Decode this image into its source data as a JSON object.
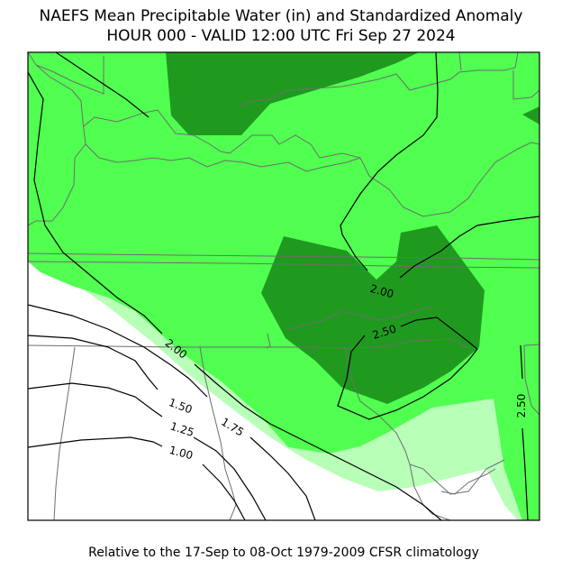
{
  "title": {
    "line1": "NAEFS Mean Precipitable Water (in) and Standardized Anomaly",
    "line2": "HOUR 000 - VALID 12:00 UTC Fri Sep 27 2024"
  },
  "footer": "Relative to the 17-Sep to 08-Oct 1979-2009 CFSR climatology",
  "colors": {
    "background": "#ffffff",
    "anomaly_low": "#b8ffb8",
    "anomaly_mid": "#50ff50",
    "anomaly_high": "#1f9a1f",
    "contour": "#000000",
    "border": "#6e6e6e"
  },
  "contour_labels": [
    "2.00",
    "2.00",
    "2.50",
    "2.50",
    "1.50",
    "1.75",
    "1.25",
    "1.00"
  ]
}
